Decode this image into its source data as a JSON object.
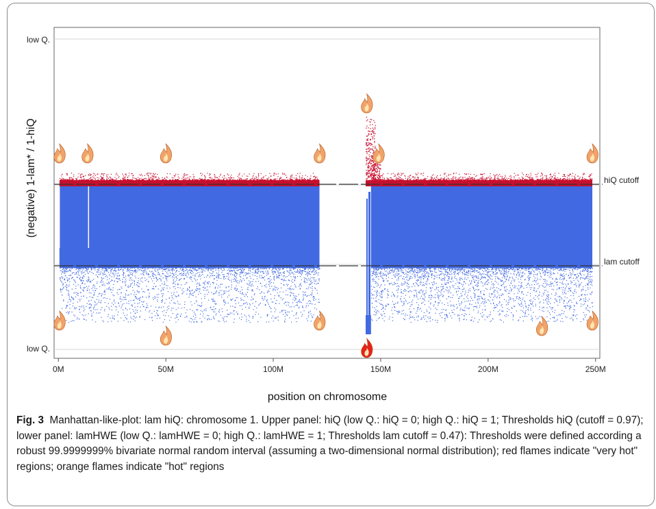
{
  "chart_data": {
    "type": "scatter",
    "ylabel": "(negative) 1-lam* / 1-hiQ",
    "xlabel": "position on chromosome",
    "x_ticks": [
      "0M",
      "50M",
      "100M",
      "150M",
      "200M",
      "250M"
    ],
    "x_tick_values": [
      0,
      50,
      100,
      150,
      200,
      250
    ],
    "xlim": [
      -2,
      252
    ],
    "y_tick_labels": {
      "top": "low Q.",
      "bottom": "low Q."
    },
    "cutoffs": [
      {
        "name": "hiQ cutoff",
        "value": 0.97
      },
      {
        "name": "lam cutoff",
        "value": 0.47
      }
    ],
    "segments": [
      {
        "start": 0.5,
        "end": 121.5
      },
      {
        "start": 145.5,
        "end": 248.5
      },
      {
        "start": 143.0,
        "end": 145.5
      }
    ],
    "series": [
      {
        "name": "hiQ",
        "color": "#c8102e"
      },
      {
        "name": "lam",
        "color": "#4169e1"
      }
    ],
    "flames": {
      "orange_upper": [
        0.5,
        13.5,
        50,
        121.5,
        143.5,
        149,
        248.5
      ],
      "orange_lower": [
        0.5,
        50,
        121.5,
        225,
        248.5
      ],
      "red_lower": [
        143.5
      ]
    },
    "grid": "horizontal"
  },
  "caption": {
    "fig_label": "Fig. 3",
    "text": "Manhattan-like-plot: lam hiQ: chromosome 1. Upper panel: hiQ (low Q.: hiQ = 0; high Q.: hiQ = 1; Thresholds hiQ (cutoff = 0.97); lower panel: lamHWE (low Q.: lamHWE = 0; high Q.: lamHWE = 1; Thresholds lam cutoff = 0.47): Thresholds were defined according a robust 99.9999999% bivariate normal random interval (assuming a two-dimensional normal distribution); red flames indicate \"very hot\" regions; orange flames indicate \"hot\" regions"
  }
}
